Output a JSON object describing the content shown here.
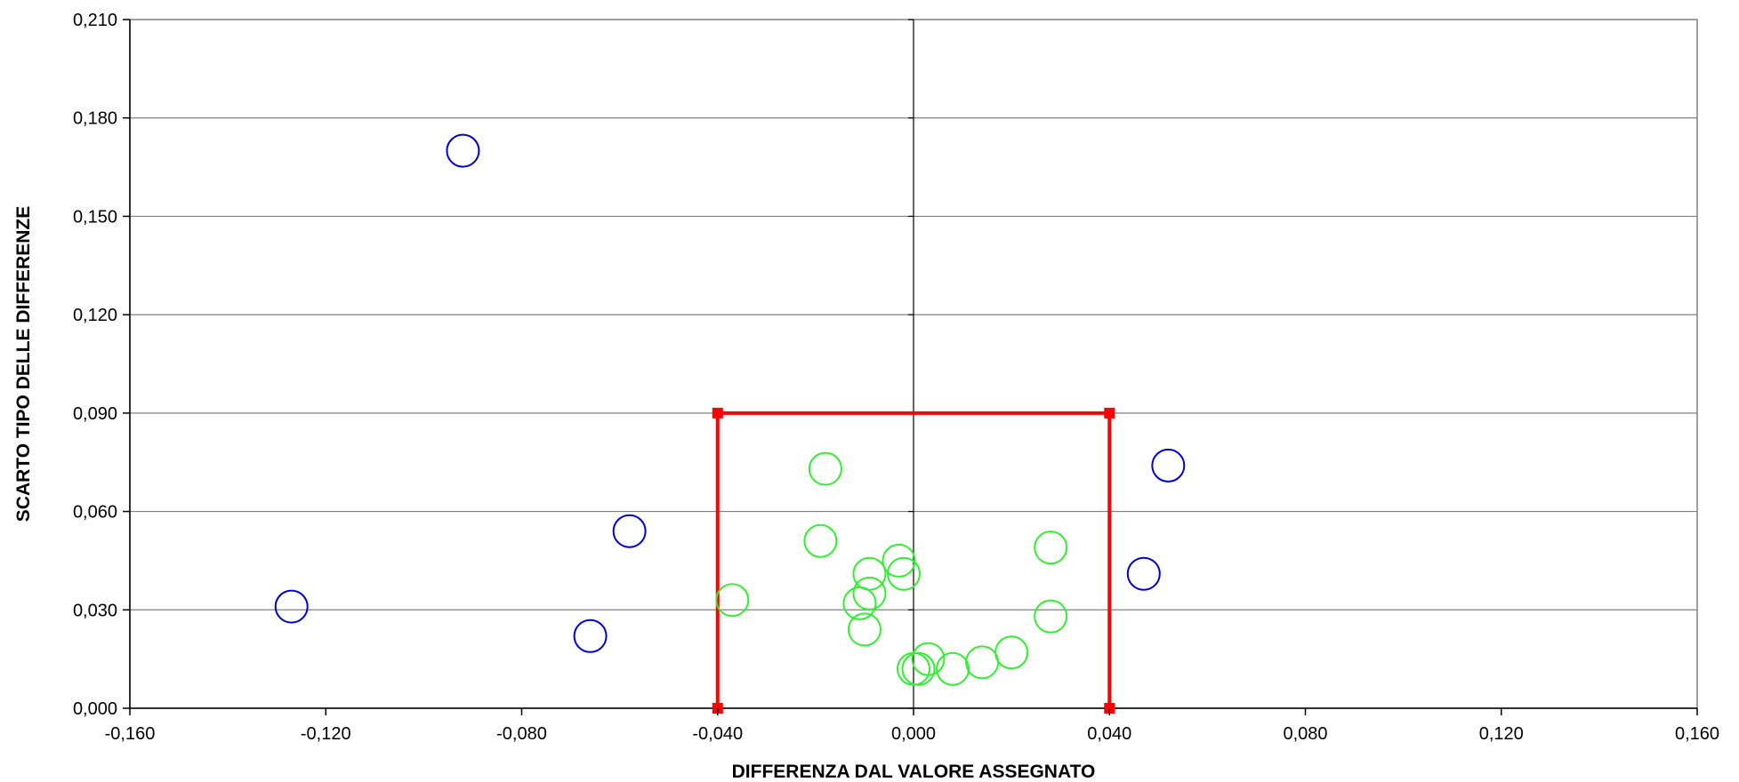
{
  "chart_data": {
    "type": "scatter",
    "title": "",
    "xlabel": "DIFFERENZA DAL VALORE ASSEGNATO",
    "ylabel": "SCARTO TIPO DELLE DIFFERENZE",
    "xlim": [
      -0.16,
      0.16
    ],
    "ylim": [
      0,
      0.21
    ],
    "x_ticks": [
      -0.16,
      -0.12,
      -0.08,
      -0.04,
      0.0,
      0.04,
      0.08,
      0.12,
      0.16
    ],
    "y_ticks": [
      0.0,
      0.03,
      0.06,
      0.09,
      0.12,
      0.15,
      0.18,
      0.21
    ],
    "x_tick_labels": [
      "-0,160",
      "-0,120",
      "-0,080",
      "-0,040",
      "0,000",
      "0,040",
      "0,080",
      "0,120",
      "0,160"
    ],
    "y_tick_labels": [
      "0,000",
      "0,030",
      "0,060",
      "0,090",
      "0,120",
      "0,150",
      "0,180",
      "0,210"
    ],
    "grid": "horizontal",
    "legend": "none",
    "series": [
      {
        "color": "#0000cc",
        "marker": "open-circle",
        "points": [
          [
            -0.127,
            0.031
          ],
          [
            -0.092,
            0.17
          ],
          [
            -0.058,
            0.054
          ],
          [
            -0.066,
            0.022
          ],
          [
            0.047,
            0.041
          ],
          [
            0.052,
            0.074
          ]
        ]
      },
      {
        "color": "#33ee33",
        "marker": "open-circle",
        "points": [
          [
            -0.037,
            0.033
          ],
          [
            -0.018,
            0.073
          ],
          [
            -0.019,
            0.051
          ],
          [
            -0.009,
            0.041
          ],
          [
            -0.009,
            0.035
          ],
          [
            -0.011,
            0.032
          ],
          [
            -0.01,
            0.024
          ],
          [
            -0.003,
            0.045
          ],
          [
            -0.002,
            0.041
          ],
          [
            0.0,
            0.012
          ],
          [
            0.001,
            0.012
          ],
          [
            0.003,
            0.015
          ],
          [
            0.008,
            0.012
          ],
          [
            0.014,
            0.014
          ],
          [
            0.02,
            0.017
          ],
          [
            0.028,
            0.049
          ],
          [
            0.028,
            0.028
          ]
        ]
      }
    ],
    "limit_box": {
      "color": "#ff0000",
      "x": [
        -0.04,
        0.04
      ],
      "y": [
        0.0,
        0.09
      ]
    }
  }
}
